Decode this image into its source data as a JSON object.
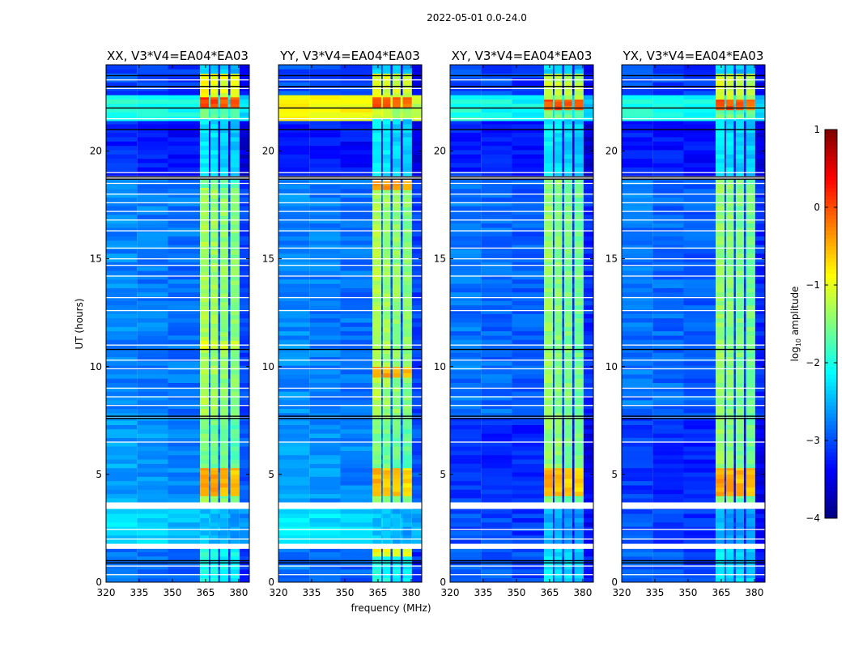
{
  "chart_data": {
    "type": "heatmap",
    "suptitle": "2022-05-01 0.0-24.0",
    "xlabel": "frequency (MHz)",
    "ylabel": "UT (hours)",
    "xlim": [
      320,
      384.8
    ],
    "ylim": [
      0,
      24
    ],
    "xticks": [
      320,
      335,
      350,
      365,
      380
    ],
    "xtick_labels": [
      "320",
      "335",
      "350",
      "365",
      "380"
    ],
    "yticks": [
      0,
      5,
      10,
      15,
      20
    ],
    "ytick_labels": [
      "0",
      "5",
      "10",
      "15",
      "20"
    ],
    "colormap": "jet",
    "colorbar": {
      "label_main": "log",
      "label_sub": "10",
      "label_rest": " amplitude",
      "range": [
        -4,
        1
      ],
      "ticks": [
        1,
        0,
        -1,
        -2,
        -3,
        -4
      ],
      "tick_labels": [
        "1",
        "0",
        "−1",
        "−2",
        "−3",
        "−4"
      ]
    },
    "rfi_columns_mhz": [
      [
        362.5,
        366.5
      ],
      [
        367.2,
        370.7
      ],
      [
        371.6,
        375.2
      ],
      [
        376.2,
        380.3
      ]
    ],
    "background_mhz": [
      320,
      362.5
    ],
    "flag_white_bands": [
      [
        3.4,
        3.7
      ],
      [
        1.55,
        1.78
      ]
    ],
    "flag_white_lines": [
      0.35,
      0.75,
      2.0,
      2.45,
      6.5,
      8.2,
      8.6,
      9.0,
      9.9,
      10.3,
      11.0,
      12.6,
      13.2,
      14.2,
      14.7,
      15.0,
      15.5,
      16.3,
      16.8,
      17.2,
      17.6,
      18.0,
      18.5,
      19.0,
      21.5,
      22.0,
      22.9,
      23.3
    ],
    "flag_black_lines": [
      0.9,
      1.0,
      7.6,
      7.7,
      10.8,
      18.7,
      18.8,
      21.0,
      22.0,
      23.0,
      23.5
    ],
    "panels": [
      {
        "title": "XX, V3*V4=EA04*EA03",
        "background": [
          [
            0,
            1.55,
            -2.8
          ],
          [
            1.78,
            3.4,
            -2.3
          ],
          [
            3.7,
            7.6,
            -2.6
          ],
          [
            7.65,
            18.7,
            -2.7
          ],
          [
            18.85,
            21.4,
            -3.2
          ],
          [
            21.4,
            22.6,
            -1.9
          ],
          [
            22.6,
            24,
            -3.0
          ]
        ],
        "rfi": [
          [
            0,
            1.2,
            -2.0
          ],
          [
            1.2,
            1.55,
            -1.9
          ],
          [
            1.78,
            3.4,
            -2.4
          ],
          [
            3.7,
            4,
            -1.4
          ],
          [
            4,
            5.3,
            -0.4
          ],
          [
            5.3,
            7.6,
            -1.5
          ],
          [
            7.65,
            10.8,
            -1.3
          ],
          [
            10.8,
            11.2,
            -0.9
          ],
          [
            11.2,
            18.3,
            -1.3
          ],
          [
            18.3,
            18.7,
            -1.6
          ],
          [
            18.85,
            21.5,
            -2.2
          ],
          [
            21.5,
            22,
            -1.5
          ],
          [
            22,
            22.5,
            0.1
          ],
          [
            22.5,
            23.6,
            -0.9
          ],
          [
            23.6,
            24,
            -2.3
          ]
        ]
      },
      {
        "title": "YY, V3*V4=EA04*EA03",
        "background": [
          [
            0,
            1.55,
            -2.8
          ],
          [
            1.78,
            3.4,
            -2.2
          ],
          [
            3.7,
            7.6,
            -2.6
          ],
          [
            7.65,
            18.7,
            -2.7
          ],
          [
            18.85,
            21.4,
            -3.2
          ],
          [
            21.4,
            22.6,
            -0.8
          ],
          [
            22.6,
            24,
            -3.0
          ]
        ],
        "rfi": [
          [
            0,
            1.2,
            -2.0
          ],
          [
            1.2,
            1.55,
            -0.9
          ],
          [
            1.78,
            3.4,
            -2.4
          ],
          [
            3.7,
            4,
            -1.4
          ],
          [
            4,
            5.3,
            -0.5
          ],
          [
            5.3,
            7.6,
            -1.5
          ],
          [
            7.65,
            9.5,
            -1.3
          ],
          [
            9.5,
            10,
            -0.4
          ],
          [
            10,
            18.2,
            -1.3
          ],
          [
            18.2,
            18.6,
            -0.3
          ],
          [
            18.85,
            21.5,
            -2.2
          ],
          [
            21.5,
            22,
            -1.2
          ],
          [
            22,
            22.5,
            0.0
          ],
          [
            22.5,
            23.6,
            -1.0
          ],
          [
            23.6,
            24,
            -2.3
          ]
        ]
      },
      {
        "title": "XY, V3*V4=EA04*EA03",
        "background": [
          [
            0,
            1.55,
            -2.9
          ],
          [
            1.78,
            3.4,
            -3.0
          ],
          [
            3.7,
            7.6,
            -3.1
          ],
          [
            7.65,
            18.7,
            -2.8
          ],
          [
            18.85,
            21.4,
            -3.2
          ],
          [
            21.4,
            22.6,
            -2.0
          ],
          [
            22.6,
            24,
            -3.0
          ]
        ],
        "rfi": [
          [
            0,
            1.55,
            -2.2
          ],
          [
            1.78,
            3.4,
            -2.5
          ],
          [
            3.7,
            4,
            -1.5
          ],
          [
            4,
            5.3,
            -0.5
          ],
          [
            5.3,
            7.6,
            -1.4
          ],
          [
            7.65,
            18.7,
            -1.4
          ],
          [
            18.85,
            21.5,
            -2.2
          ],
          [
            21.5,
            21.9,
            -1.5
          ],
          [
            21.9,
            22.4,
            0.0
          ],
          [
            22.4,
            23.6,
            -1.1
          ],
          [
            23.6,
            24,
            -2.3
          ]
        ]
      },
      {
        "title": "YX, V3*V4=EA04*EA03",
        "background": [
          [
            0,
            1.55,
            -2.9
          ],
          [
            1.78,
            3.4,
            -3.0
          ],
          [
            3.7,
            7.6,
            -3.1
          ],
          [
            7.65,
            18.7,
            -2.8
          ],
          [
            18.85,
            21.4,
            -3.2
          ],
          [
            21.4,
            22.6,
            -2.0
          ],
          [
            22.6,
            24,
            -3.0
          ]
        ],
        "rfi": [
          [
            0,
            1.55,
            -2.2
          ],
          [
            1.78,
            3.4,
            -2.5
          ],
          [
            3.7,
            4,
            -1.5
          ],
          [
            4,
            5.3,
            -0.4
          ],
          [
            5.3,
            7.6,
            -1.4
          ],
          [
            7.65,
            18.7,
            -1.4
          ],
          [
            18.85,
            21.5,
            -2.2
          ],
          [
            21.5,
            21.9,
            -1.5
          ],
          [
            21.9,
            22.4,
            0.0
          ],
          [
            22.4,
            23.6,
            -1.1
          ],
          [
            23.6,
            24,
            -2.3
          ]
        ]
      }
    ]
  }
}
